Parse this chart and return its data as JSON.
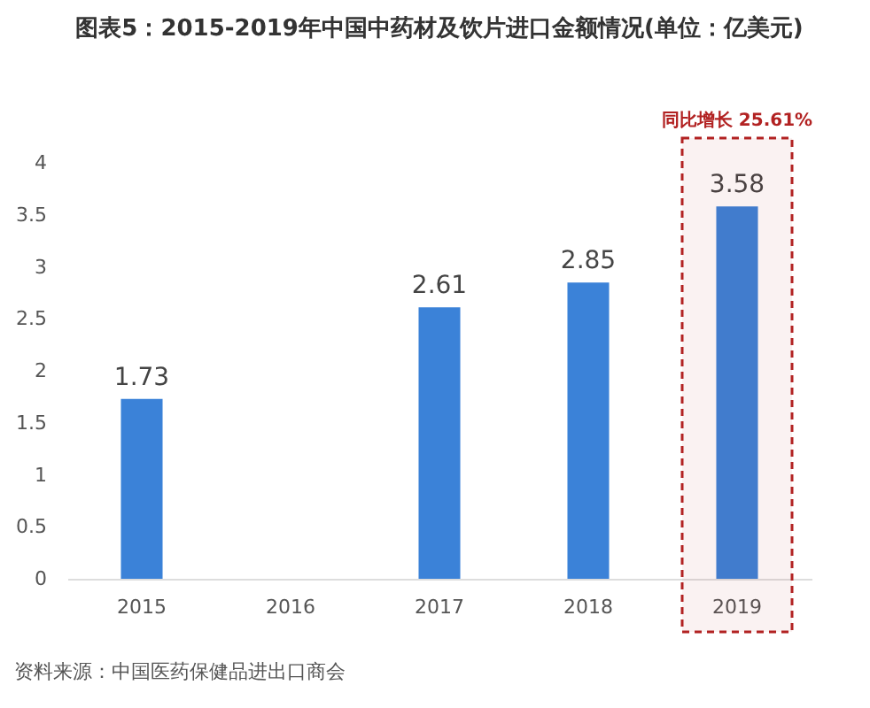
{
  "chart_data": {
    "type": "bar",
    "title": "图表5：2015-2019年中国中药材及饮片进口金额情况(单位：亿美元)",
    "categories": [
      "2015",
      "2016",
      "2017",
      "2018",
      "2019"
    ],
    "values": [
      1.73,
      null,
      2.61,
      2.85,
      3.58
    ],
    "color": "#3b82d8",
    "value_labels": [
      "1.73",
      null,
      "2.61",
      "2.85",
      "3.58"
    ],
    "ylim": [
      0,
      4
    ],
    "yticks": [
      0,
      0.5,
      1,
      1.5,
      2,
      2.5,
      3,
      3.5,
      4
    ],
    "grid": false,
    "bands": [
      {
        "axis": "x",
        "from": "2019",
        "to": "2019",
        "label": "同比增长 25.61%",
        "color": "#b22222"
      }
    ],
    "annotations": [
      "资料来源：中国医药保健品进出口商会"
    ]
  }
}
